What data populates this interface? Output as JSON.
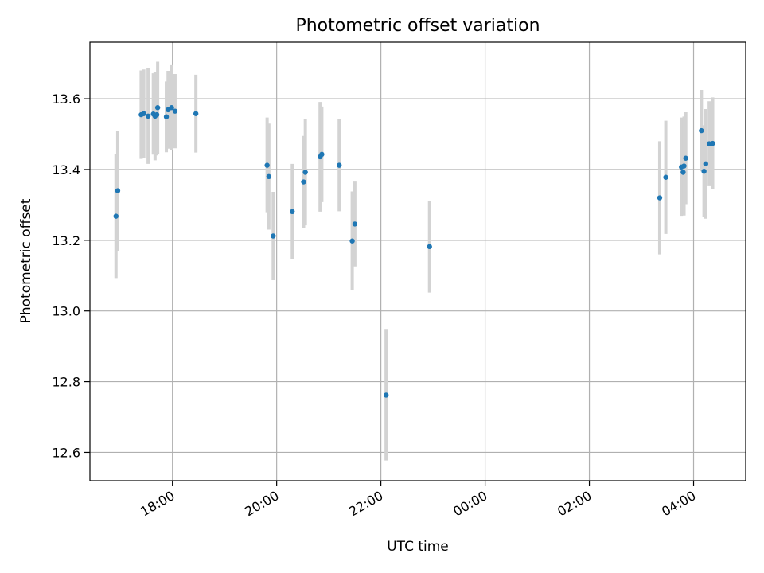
{
  "chart_data": {
    "type": "scatter",
    "title": "Photometric offset variation",
    "xlabel": "UTC time",
    "ylabel": "Photometric offset",
    "xlim": [
      "16:25",
      "29:00"
    ],
    "ylim": [
      12.52,
      13.76
    ],
    "x_ticks": [
      "18:00",
      "20:00",
      "22:00",
      "00:00",
      "02:00",
      "04:00"
    ],
    "y_ticks": [
      "12.6",
      "12.8",
      "13.0",
      "13.2",
      "13.4",
      "13.6"
    ],
    "grid": true,
    "legend": "none",
    "colors": {
      "point": "#1f77b4",
      "errorbar": "#d3d3d3",
      "grid": "#b0b0b0"
    },
    "points": [
      {
        "t": "16:55",
        "y": 13.268,
        "err": 0.175
      },
      {
        "t": "16:57",
        "y": 13.34,
        "err": 0.17
      },
      {
        "t": "17:24",
        "y": 13.555,
        "err": 0.125
      },
      {
        "t": "17:27",
        "y": 13.558,
        "err": 0.125
      },
      {
        "t": "17:32",
        "y": 13.551,
        "err": 0.135
      },
      {
        "t": "17:38",
        "y": 13.557,
        "err": 0.115
      },
      {
        "t": "17:40",
        "y": 13.551,
        "err": 0.125
      },
      {
        "t": "17:42",
        "y": 13.555,
        "err": 0.115
      },
      {
        "t": "17:43",
        "y": 13.575,
        "err": 0.13
      },
      {
        "t": "17:53",
        "y": 13.549,
        "err": 0.1
      },
      {
        "t": "17:55",
        "y": 13.569,
        "err": 0.11
      },
      {
        "t": "17:59",
        "y": 13.575,
        "err": 0.12
      },
      {
        "t": "18:03",
        "y": 13.565,
        "err": 0.105
      },
      {
        "t": "18:27",
        "y": 13.558,
        "err": 0.11
      },
      {
        "t": "19:49",
        "y": 13.412,
        "err": 0.135
      },
      {
        "t": "19:51",
        "y": 13.38,
        "err": 0.15
      },
      {
        "t": "19:56",
        "y": 13.212,
        "err": 0.125
      },
      {
        "t": "20:18",
        "y": 13.281,
        "err": 0.135
      },
      {
        "t": "20:31",
        "y": 13.365,
        "err": 0.13
      },
      {
        "t": "20:33",
        "y": 13.392,
        "err": 0.15
      },
      {
        "t": "20:50",
        "y": 13.436,
        "err": 0.155
      },
      {
        "t": "20:52",
        "y": 13.443,
        "err": 0.135
      },
      {
        "t": "21:12",
        "y": 13.412,
        "err": 0.13
      },
      {
        "t": "21:27",
        "y": 13.198,
        "err": 0.14
      },
      {
        "t": "21:30",
        "y": 13.246,
        "err": 0.12
      },
      {
        "t": "22:06",
        "y": 12.762,
        "err": 0.185
      },
      {
        "t": "22:56",
        "y": 13.182,
        "err": 0.13
      },
      {
        "t": "27:21",
        "y": 13.32,
        "err": 0.16
      },
      {
        "t": "27:28",
        "y": 13.378,
        "err": 0.16
      },
      {
        "t": "27:46",
        "y": 13.407,
        "err": 0.14
      },
      {
        "t": "27:48",
        "y": 13.392,
        "err": 0.12
      },
      {
        "t": "27:49",
        "y": 13.41,
        "err": 0.14
      },
      {
        "t": "27:51",
        "y": 13.432,
        "err": 0.13
      },
      {
        "t": "28:09",
        "y": 13.51,
        "err": 0.115
      },
      {
        "t": "28:12",
        "y": 13.395,
        "err": 0.13
      },
      {
        "t": "28:14",
        "y": 13.416,
        "err": 0.155
      },
      {
        "t": "28:18",
        "y": 13.473,
        "err": 0.12
      },
      {
        "t": "28:22",
        "y": 13.474,
        "err": 0.13
      }
    ]
  }
}
